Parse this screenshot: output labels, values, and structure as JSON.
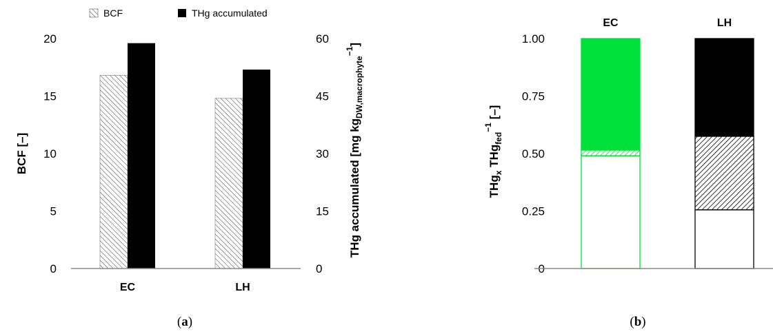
{
  "chart_data": [
    {
      "type": "bar",
      "panel_label": "(a)",
      "categories": [
        "EC",
        "LH"
      ],
      "series": [
        {
          "name": "BCF",
          "axis": "left",
          "values": [
            16.8,
            14.8
          ],
          "pattern": "dense-hatch"
        },
        {
          "name": "THg accumulated",
          "axis": "right",
          "values": [
            58.8,
            51.9
          ],
          "color": "#000000"
        }
      ],
      "ylabel": "BCF [–]",
      "ylim": [
        0,
        20
      ],
      "yticks": [
        "0",
        "5",
        "10",
        "15",
        "20"
      ],
      "y2label_main": "THg accumulated [mg kg",
      "y2label_sub": "DW,macrophyte",
      "y2label_sup": "−1",
      "y2label_end": "]",
      "y2lim": [
        0,
        60
      ],
      "y2ticks": [
        "0",
        "15",
        "30",
        "45",
        "60"
      ],
      "legend_placement": "top",
      "grid": false
    },
    {
      "type": "bar",
      "stacked": true,
      "panel_label": "(b)",
      "categories": [
        "EC",
        "LH"
      ],
      "category_colors": [
        "#00e03a",
        "#000000"
      ],
      "segments": [
        {
          "style": "open",
          "values": [
            0.49,
            0.255
          ]
        },
        {
          "style": "hatch",
          "values": [
            0.025,
            0.32
          ]
        },
        {
          "style": "solid",
          "values": [
            0.485,
            0.425
          ]
        }
      ],
      "ylabel_parts": [
        "THg",
        "x",
        " THg",
        "fed",
        "−1",
        " [–]"
      ],
      "ylim": [
        0,
        1
      ],
      "yticks": [
        "0",
        "0.25",
        "0.50",
        "0.75",
        "1.00"
      ],
      "grid": false
    }
  ]
}
